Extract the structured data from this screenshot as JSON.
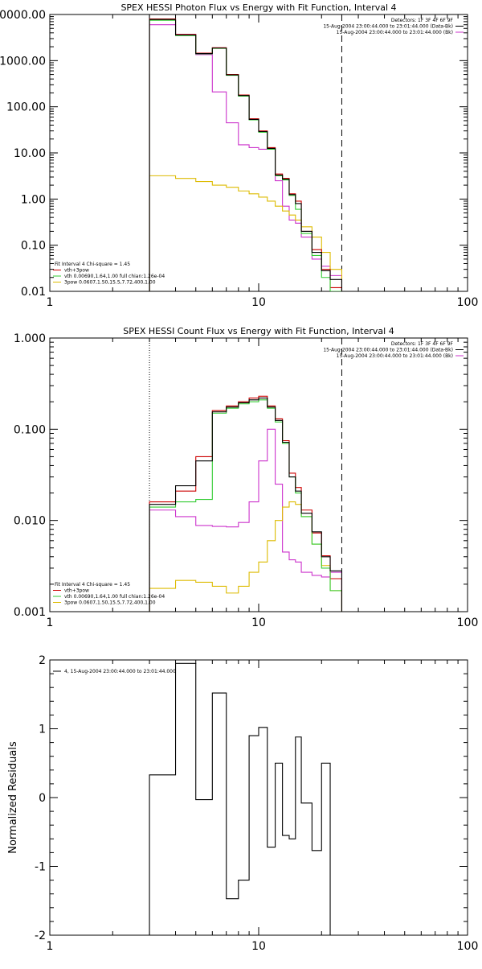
{
  "chart_data": [
    {
      "type": "line",
      "title": "SPEX HESSI Photon Flux vs Energy with Fit Function, Interval 4",
      "xlog": true,
      "ylog": true,
      "xlim": [
        1,
        100
      ],
      "ylim": [
        0.01,
        10000
      ],
      "xticks": [
        1,
        10,
        100
      ],
      "xticklabels": [
        "1",
        "10",
        "100"
      ],
      "yticks": [
        0.01,
        0.1,
        1,
        10,
        100,
        1000,
        10000
      ],
      "yticklabels": [
        "0.01",
        "0.10",
        "1.00",
        "10.00",
        "100.00",
        "1000.00",
        "10000.00"
      ],
      "vlines": [
        {
          "x": 3,
          "style": "solid",
          "color": "#000000"
        },
        {
          "x": 25,
          "style": "dashed",
          "color": "#000000"
        }
      ],
      "legend_right": [
        {
          "text": "Detectors: 1F 3F 4F 6F 9F",
          "color": ""
        },
        {
          "text": "15-Aug-2004 23:00:44.000 to 23:01:44.000 (Data-Bk)",
          "color": "#000000"
        },
        {
          "text": "15-Aug-2004 23:00:44.000 to 23:01:44.000 (Bk)",
          "color": "#cc33cc"
        }
      ],
      "legend_left": [
        {
          "text": "Fit Interval  4    Chi-square = 1.45",
          "color": ""
        },
        {
          "text": "vth+3pow",
          "color": "#cc0000"
        },
        {
          "text": "vth 0.00690,1.64,1.00  full chian:1.26e-04",
          "color": "#33cc33"
        },
        {
          "text": "3pow 0.0607,1.50,15.5,7.72,400,1.00",
          "color": "#ddbb00"
        }
      ],
      "edges": [
        3,
        4,
        5,
        6,
        7,
        8,
        9,
        10,
        11,
        12,
        13,
        14,
        15,
        16,
        18,
        20,
        22,
        25
      ],
      "series": [
        {
          "color": "#cc33cc",
          "values": [
            6000,
            3700,
            1350,
            210,
            45,
            15,
            13,
            12,
            12,
            2.5,
            0.7,
            0.35,
            0.3,
            0.15,
            0.05,
            0.035,
            0.022
          ]
        },
        {
          "color": "#ddbb00",
          "values": [
            3.2,
            2.8,
            2.4,
            2.0,
            1.8,
            1.5,
            1.3,
            1.1,
            0.9,
            0.7,
            0.55,
            0.45,
            0.35,
            0.25,
            0.15,
            0.07,
            0.03
          ]
        },
        {
          "color": "#cc0000",
          "values": [
            8000,
            3700,
            1450,
            1900,
            500,
            180,
            55,
            30,
            13,
            3.5,
            2.8,
            1.3,
            0.9,
            0.2,
            0.08,
            0.03,
            0.012
          ]
        },
        {
          "color": "#33cc33",
          "values": [
            7500,
            3500,
            1400,
            1850,
            480,
            170,
            52,
            28,
            12,
            3.2,
            2.6,
            1.2,
            0.6,
            0.18,
            0.06,
            0.02,
            0.01
          ]
        },
        {
          "color": "#000000",
          "values": [
            7800,
            3600,
            1420,
            1870,
            490,
            175,
            53,
            29,
            12.5,
            3.3,
            2.7,
            1.25,
            0.8,
            0.2,
            0.07,
            0.028,
            0.018
          ]
        }
      ]
    },
    {
      "type": "line",
      "title": "SPEX HESSI Count Flux vs Energy with Fit Function, Interval 4",
      "ylabel": "",
      "xlog": true,
      "ylog": true,
      "xlim": [
        1,
        100
      ],
      "ylim": [
        0.001,
        1
      ],
      "xticks": [
        1,
        10,
        100
      ],
      "xticklabels": [
        "1",
        "10",
        "100"
      ],
      "yticks": [
        0.001,
        0.01,
        0.1,
        1
      ],
      "yticklabels": [
        "0.001",
        "0.010",
        "0.100",
        "1.000"
      ],
      "vlines": [
        {
          "x": 3,
          "style": "dotted",
          "color": "#000000"
        },
        {
          "x": 25,
          "style": "dashed",
          "color": "#000000"
        }
      ],
      "legend_right": [
        {
          "text": "Detectors: 1F 3F 4F 6F 9F",
          "color": ""
        },
        {
          "text": "15-Aug-2004 23:00:44.000 to 23:01:44.000 (Data-Bk)",
          "color": "#000000"
        },
        {
          "text": "15-Aug-2004 23:00:44.000 to 23:01:44.000 (Bk)",
          "color": "#cc33cc"
        }
      ],
      "legend_left": [
        {
          "text": "Fit Interval  4    Chi-square = 1.45",
          "color": ""
        },
        {
          "text": "vth+3pow",
          "color": "#cc0000"
        },
        {
          "text": "vth 0.00690,1.64,1.00  full chian:1.26e-04",
          "color": "#33cc33"
        },
        {
          "text": "3pow 0.0607,1.50,15.5,7.72,400,1.00",
          "color": "#ddbb00"
        }
      ],
      "edges": [
        3,
        4,
        5,
        6,
        7,
        8,
        9,
        10,
        11,
        12,
        13,
        14,
        15,
        16,
        18,
        20,
        22,
        25
      ],
      "series": [
        {
          "color": "#cc33cc",
          "values": [
            0.013,
            0.011,
            0.0088,
            0.0086,
            0.0085,
            0.0095,
            0.016,
            0.045,
            0.1,
            0.025,
            0.0045,
            0.0037,
            0.0035,
            0.0027,
            0.0025,
            0.0024,
            0.0027
          ]
        },
        {
          "color": "#ddbb00",
          "values": [
            0.0018,
            0.0022,
            0.0021,
            0.0019,
            0.0016,
            0.0019,
            0.0027,
            0.0035,
            0.006,
            0.01,
            0.014,
            0.016,
            0.015,
            0.011,
            0.0055,
            0.0032,
            0.0017
          ]
        },
        {
          "color": "#cc0000",
          "values": [
            0.016,
            0.021,
            0.05,
            0.16,
            0.18,
            0.2,
            0.22,
            0.23,
            0.18,
            0.13,
            0.075,
            0.033,
            0.023,
            0.013,
            0.0073,
            0.0041,
            0.0023
          ]
        },
        {
          "color": "#33cc33",
          "values": [
            0.014,
            0.016,
            0.017,
            0.15,
            0.17,
            0.19,
            0.2,
            0.21,
            0.17,
            0.12,
            0.07,
            0.03,
            0.02,
            0.011,
            0.0055,
            0.003,
            0.0017
          ]
        },
        {
          "color": "#000000",
          "values": [
            0.015,
            0.024,
            0.045,
            0.155,
            0.175,
            0.195,
            0.21,
            0.22,
            0.175,
            0.125,
            0.072,
            0.03,
            0.021,
            0.012,
            0.0075,
            0.004,
            0.0028
          ]
        }
      ]
    },
    {
      "type": "line",
      "title": "",
      "ylabel": "Normalized Residuals",
      "xlog": true,
      "ylog": false,
      "xlim": [
        1,
        100
      ],
      "ylim": [
        -2,
        2
      ],
      "xticks": [
        1,
        10,
        100
      ],
      "xticklabels": [
        "1",
        "10",
        "100"
      ],
      "yticks": [
        -2,
        -1,
        0,
        1,
        2
      ],
      "yticklabels": [
        "-2",
        "-1",
        "0",
        "1",
        "2"
      ],
      "vlines": [],
      "legend_left": [
        {
          "text": "4, 15-Aug-2004 23:00:44.000 to 23:01:44.000",
          "color": "#000000"
        }
      ],
      "edges": [
        3,
        4,
        5,
        6,
        7,
        8,
        9,
        10,
        11,
        12,
        13,
        14,
        15,
        16,
        18,
        20,
        22,
        25
      ],
      "series": [
        {
          "color": "#000000",
          "values": [
            0.33,
            1.95,
            -0.03,
            1.52,
            -1.47,
            -1.2,
            0.9,
            1.02,
            -0.72,
            0.5,
            -0.55,
            -0.6,
            0.88,
            -0.08,
            -0.77,
            0.5,
            -2.2
          ]
        }
      ]
    }
  ]
}
